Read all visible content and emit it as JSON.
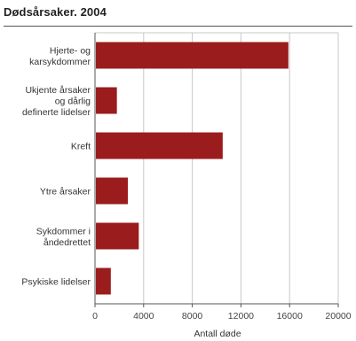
{
  "chart_data": {
    "type": "bar",
    "orientation": "horizontal",
    "title": "Dødsårsaker. 2004",
    "categories": [
      [
        "Hjerte- og",
        "karsykdommer"
      ],
      [
        "Ukjente årsaker",
        "og dårlig",
        "definerte lidelser"
      ],
      [
        "Kreft"
      ],
      [
        "Ytre årsaker"
      ],
      [
        "Sykdommer i",
        "åndedrettet"
      ],
      [
        "Psykiske lidelser"
      ]
    ],
    "values": [
      15900,
      1800,
      10500,
      2700,
      3600,
      1300
    ],
    "xlabel": "Antall døde",
    "ylabel": "",
    "xlim": [
      0,
      20000
    ],
    "xticks": [
      0,
      4000,
      8000,
      12000,
      16000,
      20000
    ],
    "grid": true,
    "colors": {
      "bar": "#9b1c1c",
      "grid": "#c8c8c8",
      "axis": "#555555"
    }
  }
}
